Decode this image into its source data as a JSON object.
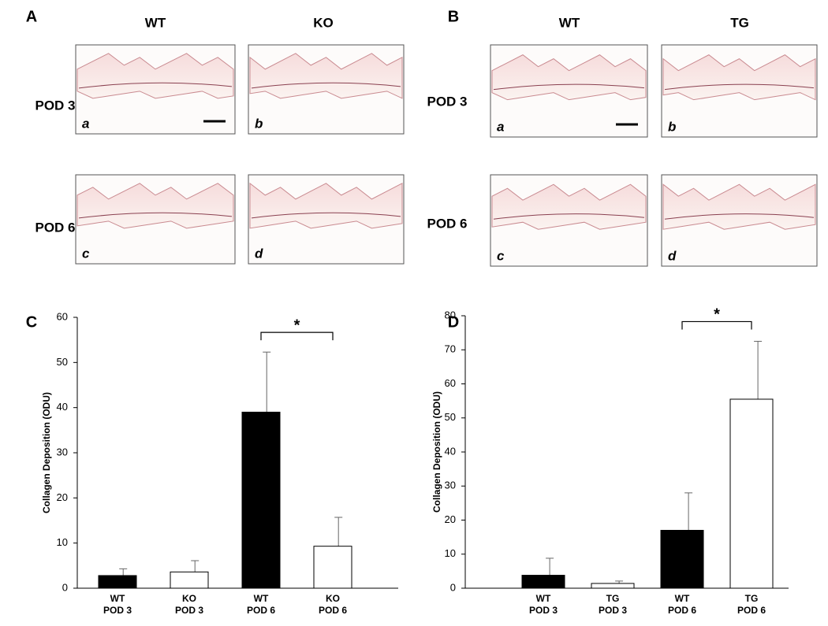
{
  "panels": [
    {
      "letter": "A",
      "columns": [
        "WT",
        "KO"
      ],
      "rows": [
        "POD 3",
        "POD 6"
      ],
      "tiles": [
        "a",
        "b",
        "c",
        "d"
      ]
    },
    {
      "letter": "B",
      "columns": [
        "WT",
        "TG"
      ],
      "rows": [
        "POD 3",
        "POD 6"
      ],
      "tiles": [
        "a",
        "b",
        "c",
        "d"
      ]
    }
  ],
  "chart_data": [
    {
      "type": "bar",
      "panel": "C",
      "ylabel": "Collagen Deposition (ODU)",
      "categories": [
        [
          "WT",
          "POD 3"
        ],
        [
          "KO",
          "POD 3"
        ],
        [
          "WT",
          "POD 6"
        ],
        [
          "KO",
          "POD 6"
        ]
      ],
      "values": [
        2.8,
        3.6,
        39,
        9.3
      ],
      "errors": [
        1.5,
        2.5,
        13.3,
        6.4
      ],
      "colors": [
        "#000000",
        "#ffffff",
        "#000000",
        "#ffffff"
      ],
      "ylim": [
        0,
        60
      ],
      "yticks": [
        0,
        10,
        20,
        30,
        40,
        50,
        60
      ],
      "annotations": [
        {
          "text": "*",
          "categories": [
            2,
            3
          ]
        }
      ]
    },
    {
      "type": "bar",
      "panel": "D",
      "ylabel": "Collagen Deposition (ODU)",
      "categories": [
        [
          "WT",
          "POD 3"
        ],
        [
          "TG",
          "POD 3"
        ],
        [
          "WT",
          "POD 6"
        ],
        [
          "TG",
          "POD 6"
        ]
      ],
      "values": [
        3.8,
        1.4,
        17,
        55.5
      ],
      "errors": [
        5,
        0.7,
        11,
        17
      ],
      "colors": [
        "#000000",
        "#ffffff",
        "#000000",
        "#ffffff"
      ],
      "ylim": [
        0,
        80
      ],
      "yticks": [
        0,
        10,
        20,
        30,
        40,
        50,
        60,
        70,
        80
      ],
      "annotations": [
        {
          "text": "*",
          "categories": [
            2,
            3
          ]
        }
      ]
    }
  ]
}
